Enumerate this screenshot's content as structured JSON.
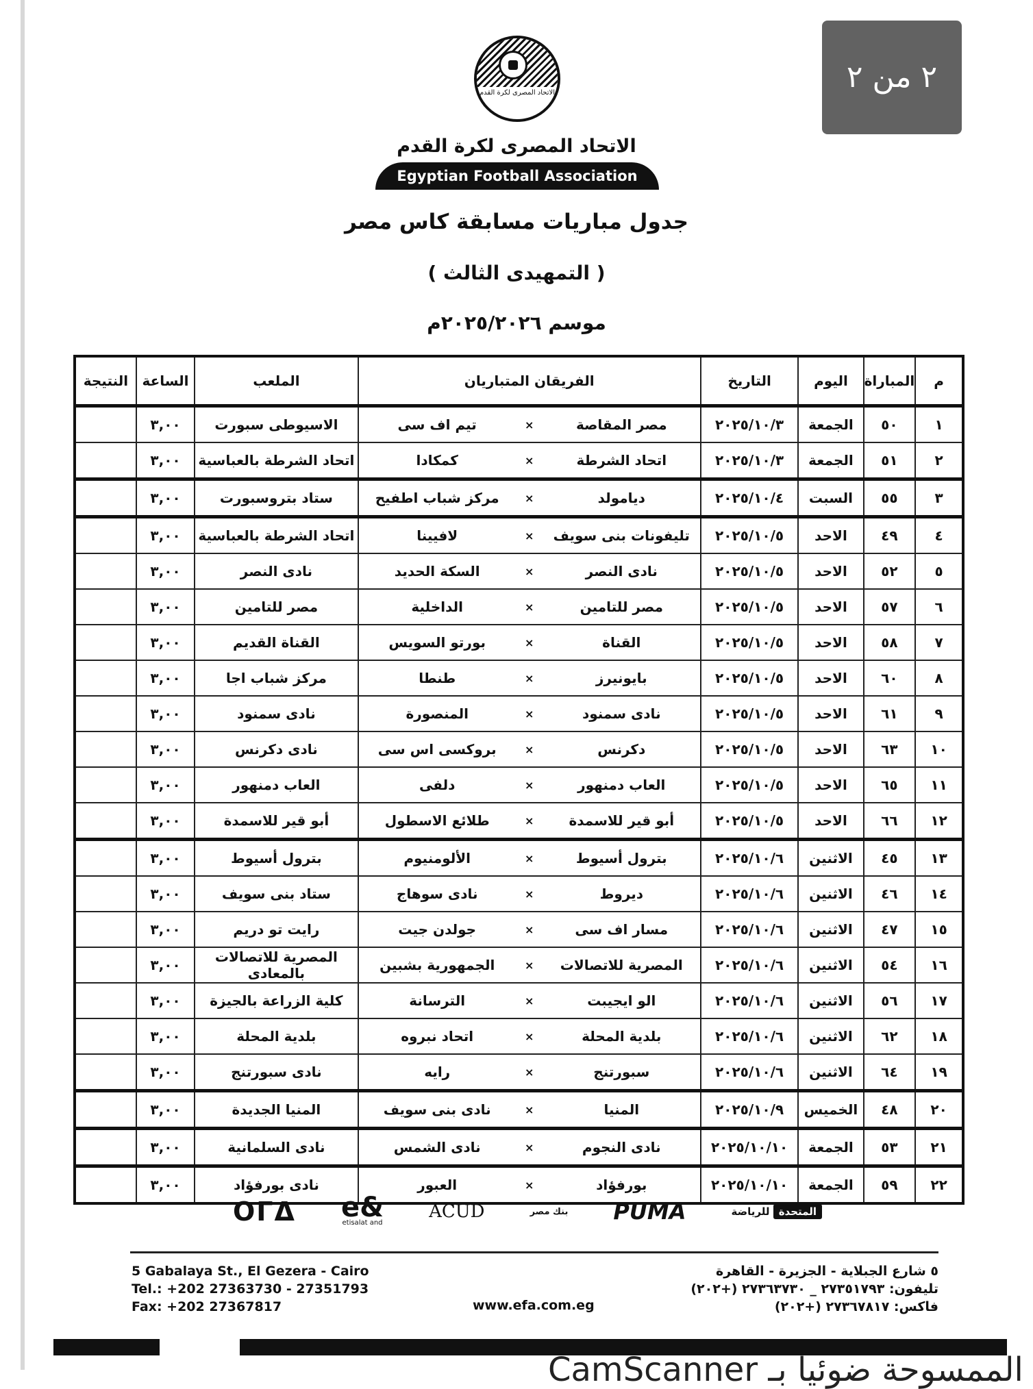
{
  "header": {
    "logo_text": "الاتحاد المصرى لكرة القدم",
    "org_ar": "الاتحاد المصرى لكرة القدم",
    "org_en": "Egyptian Football Association",
    "title": "جدول مباريات مسابقة  كاس مصر",
    "round": "( التمهيدى الثالث )",
    "season": "موسم ٢٠٢٥/٢٠٢٦م"
  },
  "table": {
    "columns": [
      "م",
      "المباراة",
      "اليوم",
      "التاريخ",
      "الفريقان المتباريان",
      "الملعب",
      "الساعة",
      "النتيجة"
    ],
    "vs": "×",
    "rows": [
      {
        "n": "١",
        "match": "٥٠",
        "day": "الجمعة",
        "date": "٢٠٢٥/١٠/٣",
        "home": "مصر المقاصة",
        "away": "تيم اف سى",
        "venue": "الاسيوطى سبورت",
        "time": "٣,٠٠",
        "result": ""
      },
      {
        "n": "٢",
        "match": "٥١",
        "day": "الجمعة",
        "date": "٢٠٢٥/١٠/٣",
        "home": "اتحاد الشرطة",
        "away": "كمكادا",
        "venue": "اتحاد الشرطة بالعباسية",
        "time": "٣,٠٠",
        "result": ""
      },
      {
        "n": "٣",
        "match": "٥٥",
        "day": "السبت",
        "date": "٢٠٢٥/١٠/٤",
        "home": "ديامولد",
        "away": "مركز شباب اطفيح",
        "venue": "ستاد بتروسبورت",
        "time": "٣,٠٠",
        "result": ""
      },
      {
        "n": "٤",
        "match": "٤٩",
        "day": "الاحد",
        "date": "٢٠٢٥/١٠/٥",
        "home": "تليفونات بنى سويف",
        "away": "لافيينا",
        "venue": "اتحاد الشرطة بالعباسية",
        "time": "٣,٠٠",
        "result": ""
      },
      {
        "n": "٥",
        "match": "٥٢",
        "day": "الاحد",
        "date": "٢٠٢٥/١٠/٥",
        "home": "نادى النصر",
        "away": "السكة الحديد",
        "venue": "نادى النصر",
        "time": "٣,٠٠",
        "result": ""
      },
      {
        "n": "٦",
        "match": "٥٧",
        "day": "الاحد",
        "date": "٢٠٢٥/١٠/٥",
        "home": "مصر للتامين",
        "away": "الداخلية",
        "venue": "مصر للتامين",
        "time": "٣,٠٠",
        "result": ""
      },
      {
        "n": "٧",
        "match": "٥٨",
        "day": "الاحد",
        "date": "٢٠٢٥/١٠/٥",
        "home": "القناة",
        "away": "بورتو السويس",
        "venue": "القناة القديم",
        "time": "٣,٠٠",
        "result": ""
      },
      {
        "n": "٨",
        "match": "٦٠",
        "day": "الاحد",
        "date": "٢٠٢٥/١٠/٥",
        "home": "بايونيرز",
        "away": "طنطا",
        "venue": "مركز شباب اجا",
        "time": "٣,٠٠",
        "result": ""
      },
      {
        "n": "٩",
        "match": "٦١",
        "day": "الاحد",
        "date": "٢٠٢٥/١٠/٥",
        "home": "نادى سمنود",
        "away": "المنصورة",
        "venue": "نادى سمنود",
        "time": "٣,٠٠",
        "result": ""
      },
      {
        "n": "١٠",
        "match": "٦٣",
        "day": "الاحد",
        "date": "٢٠٢٥/١٠/٥",
        "home": "دكرنس",
        "away": "بروكسى اس سى",
        "venue": "نادى دكرنس",
        "time": "٣,٠٠",
        "result": ""
      },
      {
        "n": "١١",
        "match": "٦٥",
        "day": "الاحد",
        "date": "٢٠٢٥/١٠/٥",
        "home": "العاب دمنهور",
        "away": "دلفى",
        "venue": "العاب دمنهور",
        "time": "٣,٠٠",
        "result": ""
      },
      {
        "n": "١٢",
        "match": "٦٦",
        "day": "الاحد",
        "date": "٢٠٢٥/١٠/٥",
        "home": "أبو قير للاسمدة",
        "away": "طلائع الاسطول",
        "venue": "أبو قير للاسمدة",
        "time": "٣,٠٠",
        "result": ""
      },
      {
        "n": "١٣",
        "match": "٤٥",
        "day": "الاثنين",
        "date": "٢٠٢٥/١٠/٦",
        "home": "بترول أسيوط",
        "away": "الألومنيوم",
        "venue": "بترول أسيوط",
        "time": "٣,٠٠",
        "result": ""
      },
      {
        "n": "١٤",
        "match": "٤٦",
        "day": "الاثنين",
        "date": "٢٠٢٥/١٠/٦",
        "home": "ديروط",
        "away": "نادى سوهاج",
        "venue": "ستاد بنى سويف",
        "time": "٣,٠٠",
        "result": ""
      },
      {
        "n": "١٥",
        "match": "٤٧",
        "day": "الاثنين",
        "date": "٢٠٢٥/١٠/٦",
        "home": "مسار اف سى",
        "away": "جولدن جيت",
        "venue": "رايت تو دريم",
        "time": "٣,٠٠",
        "result": ""
      },
      {
        "n": "١٦",
        "match": "٥٤",
        "day": "الاثنين",
        "date": "٢٠٢٥/١٠/٦",
        "home": "المصرية للاتصالات",
        "away": "الجمهورية بشبين",
        "venue": "المصرية للاتصالات بالمعادى",
        "time": "٣,٠٠",
        "result": ""
      },
      {
        "n": "١٧",
        "match": "٥٦",
        "day": "الاثنين",
        "date": "٢٠٢٥/١٠/٦",
        "home": "الو ايجيبت",
        "away": "الترسانة",
        "venue": "كلية الزراعة بالجيزة",
        "time": "٣,٠٠",
        "result": ""
      },
      {
        "n": "١٨",
        "match": "٦٢",
        "day": "الاثنين",
        "date": "٢٠٢٥/١٠/٦",
        "home": "بلدية المحلة",
        "away": "اتحاد نبروه",
        "venue": "بلدية المحلة",
        "time": "٣,٠٠",
        "result": ""
      },
      {
        "n": "١٩",
        "match": "٦٤",
        "day": "الاثنين",
        "date": "٢٠٢٥/١٠/٦",
        "home": "سبورتنج",
        "away": "رايه",
        "venue": "نادى سبورتنج",
        "time": "٣,٠٠",
        "result": ""
      },
      {
        "n": "٢٠",
        "match": "٤٨",
        "day": "الخميس",
        "date": "٢٠٢٥/١٠/٩",
        "home": "المنيا",
        "away": "نادى بنى سويف",
        "venue": "المنيا الجديدة",
        "time": "٣,٠٠",
        "result": ""
      },
      {
        "n": "٢١",
        "match": "٥٣",
        "day": "الجمعة",
        "date": "٢٠٢٥/١٠/١٠",
        "home": "نادى النجوم",
        "away": "نادى الشمس",
        "venue": "نادى السلمانية",
        "time": "٣,٠٠",
        "result": ""
      },
      {
        "n": "٢٢",
        "match": "٥٩",
        "day": "الجمعة",
        "date": "٢٠٢٥/١٠/١٠",
        "home": "بورفؤاد",
        "away": "العبور",
        "venue": "نادى بورفؤاد",
        "time": "٣,٠٠",
        "result": ""
      }
    ]
  },
  "page_indicator": "٢ من ٢",
  "sponsors": {
    "ora": "OΓΔ",
    "eand": "e&",
    "eand_sub": "etisalat and",
    "acud": "ACUD",
    "banque_misr": "بنك مصر",
    "puma": "PUMA",
    "united": "المتحدة",
    "united_sub": "للرياضة"
  },
  "footer": {
    "address_en": "5 Gabalaya St., El Gezera - Cairo",
    "tel_en": "Tel.: +202 27363730 - 27351793",
    "fax_en": "Fax: +202 27367817",
    "website": "www.efa.com.eg",
    "address_ar": "٥ شارع الجبلاية - الجزيرة - القاهرة",
    "tel_ar": "تليفون: ٢٧٣٥١٧٩٣ _ ٢٧٣٦٣٧٣٠ (+٢٠٢)",
    "fax_ar": "فاكس: ٢٧٣٦٧٨١٧ (+٢٠٢)"
  },
  "scanner_watermark": "CamScanner الممسوحة ضوئيا بـ"
}
